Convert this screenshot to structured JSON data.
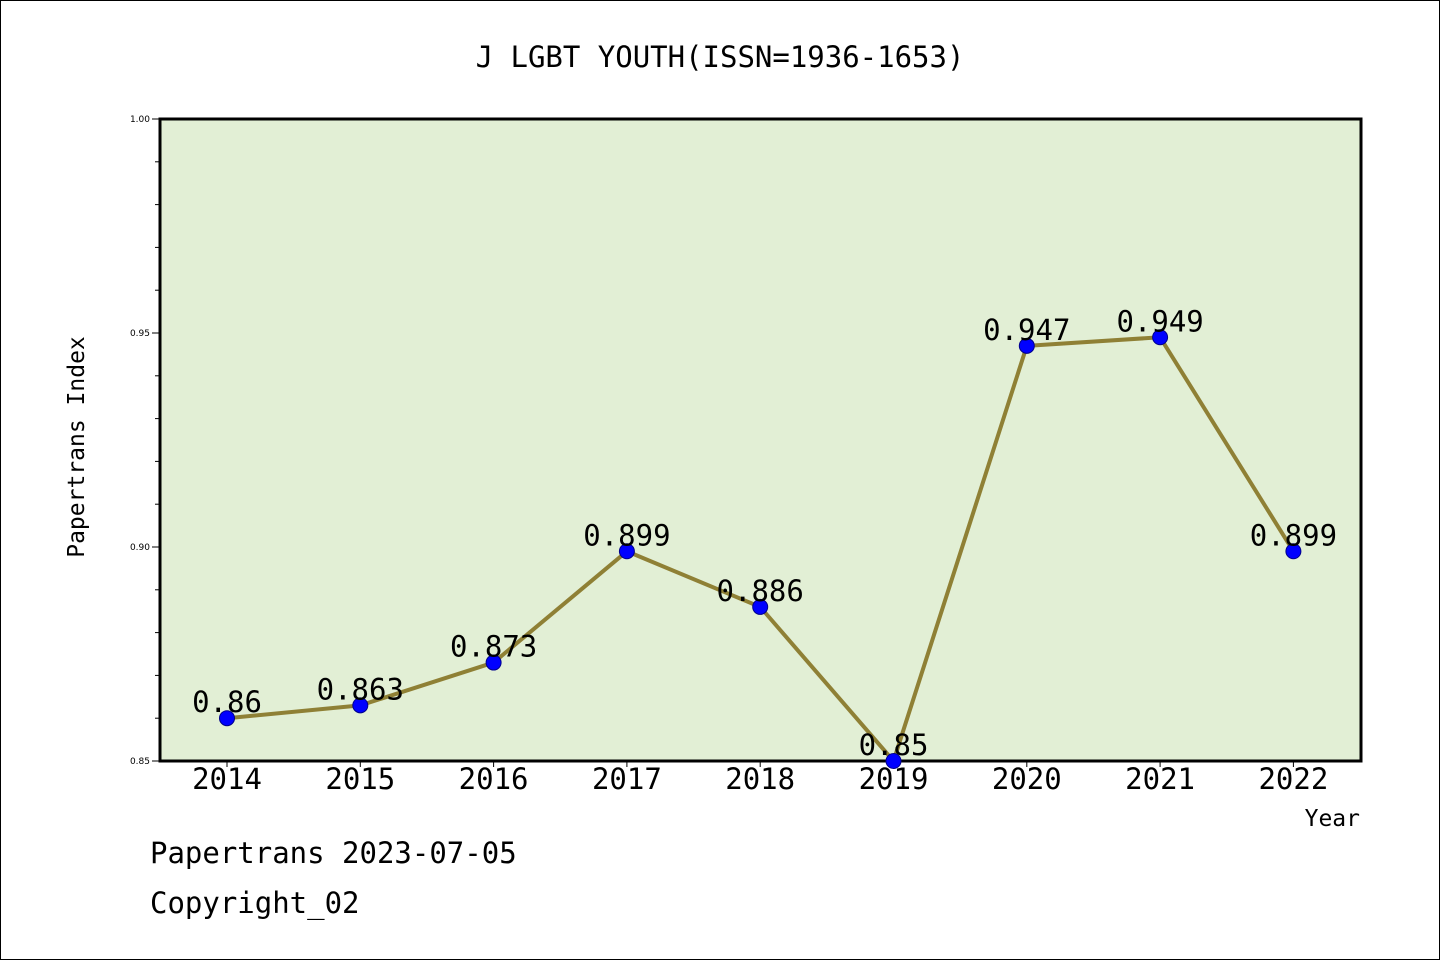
{
  "chart_data": {
    "type": "line",
    "title": "J LGBT YOUTH(ISSN=1936-1653)",
    "xlabel": "Year",
    "ylabel": "Papertrans Index",
    "categories": [
      "2014",
      "2015",
      "2016",
      "2017",
      "2018",
      "2019",
      "2020",
      "2021",
      "2022"
    ],
    "series": [
      {
        "values": [
          0.86,
          0.863,
          0.873,
          0.899,
          0.886,
          0.85,
          0.947,
          0.949,
          0.899
        ],
        "labels": [
          "0.86",
          "0.863",
          "0.873",
          "0.899",
          "0.886",
          "0.85",
          "0.947",
          "0.949",
          "0.899"
        ]
      }
    ],
    "ylim": [
      0.85,
      1.0
    ],
    "yticks": [
      "0.85",
      "0.90",
      "0.95",
      "1.00"
    ],
    "grid": false,
    "colors": {
      "plot_background": "#e2efd5",
      "line": "#8f8035",
      "marker": "#0000ff"
    }
  },
  "footer": {
    "line1": "Papertrans 2023-07-05",
    "line2": "Copyright_02"
  }
}
